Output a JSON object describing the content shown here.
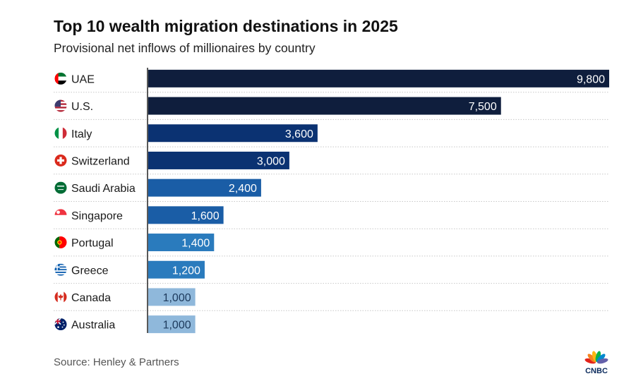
{
  "title": "Top 10 wealth migration destinations in 2025",
  "subtitle": "Provisional net inflows of millionaires by country",
  "source": "Source: Henley & Partners",
  "logo_text": "CNBC",
  "chart_data": {
    "type": "bar",
    "orientation": "horizontal",
    "title": "Top 10 wealth migration destinations in 2025",
    "subtitle": "Provisional net inflows of millionaires by country",
    "categories": [
      "UAE",
      "U.S.",
      "Italy",
      "Switzerland",
      "Saudi Arabia",
      "Singapore",
      "Portugal",
      "Greece",
      "Canada",
      "Australia"
    ],
    "values": [
      9800,
      7500,
      3600,
      3000,
      2400,
      1600,
      1400,
      1200,
      1000,
      1000
    ],
    "value_labels": [
      "9,800",
      "7,500",
      "3,600",
      "3,000",
      "2,400",
      "1,600",
      "1,400",
      "1,200",
      "1,000",
      "1,000"
    ],
    "flag_icons": [
      "uae-flag-icon",
      "us-flag-icon",
      "italy-flag-icon",
      "switzerland-flag-icon",
      "saudi-arabia-flag-icon",
      "singapore-flag-icon",
      "portugal-flag-icon",
      "greece-flag-icon",
      "canada-flag-icon",
      "australia-flag-icon"
    ],
    "bar_colors": [
      "#0f1e3d",
      "#0f1e3d",
      "#0b3272",
      "#0b3272",
      "#1a5da6",
      "#1a5da6",
      "#2a7bbd",
      "#2a7bbd",
      "#8fb8db",
      "#8fb8db"
    ],
    "label_colors": [
      "#ffffff",
      "#ffffff",
      "#ffffff",
      "#ffffff",
      "#ffffff",
      "#ffffff",
      "#ffffff",
      "#ffffff",
      "#1d3a5c",
      "#1d3a5c"
    ],
    "xlim": [
      0,
      9800
    ],
    "grid": "dotted row separators",
    "legend": "none"
  }
}
